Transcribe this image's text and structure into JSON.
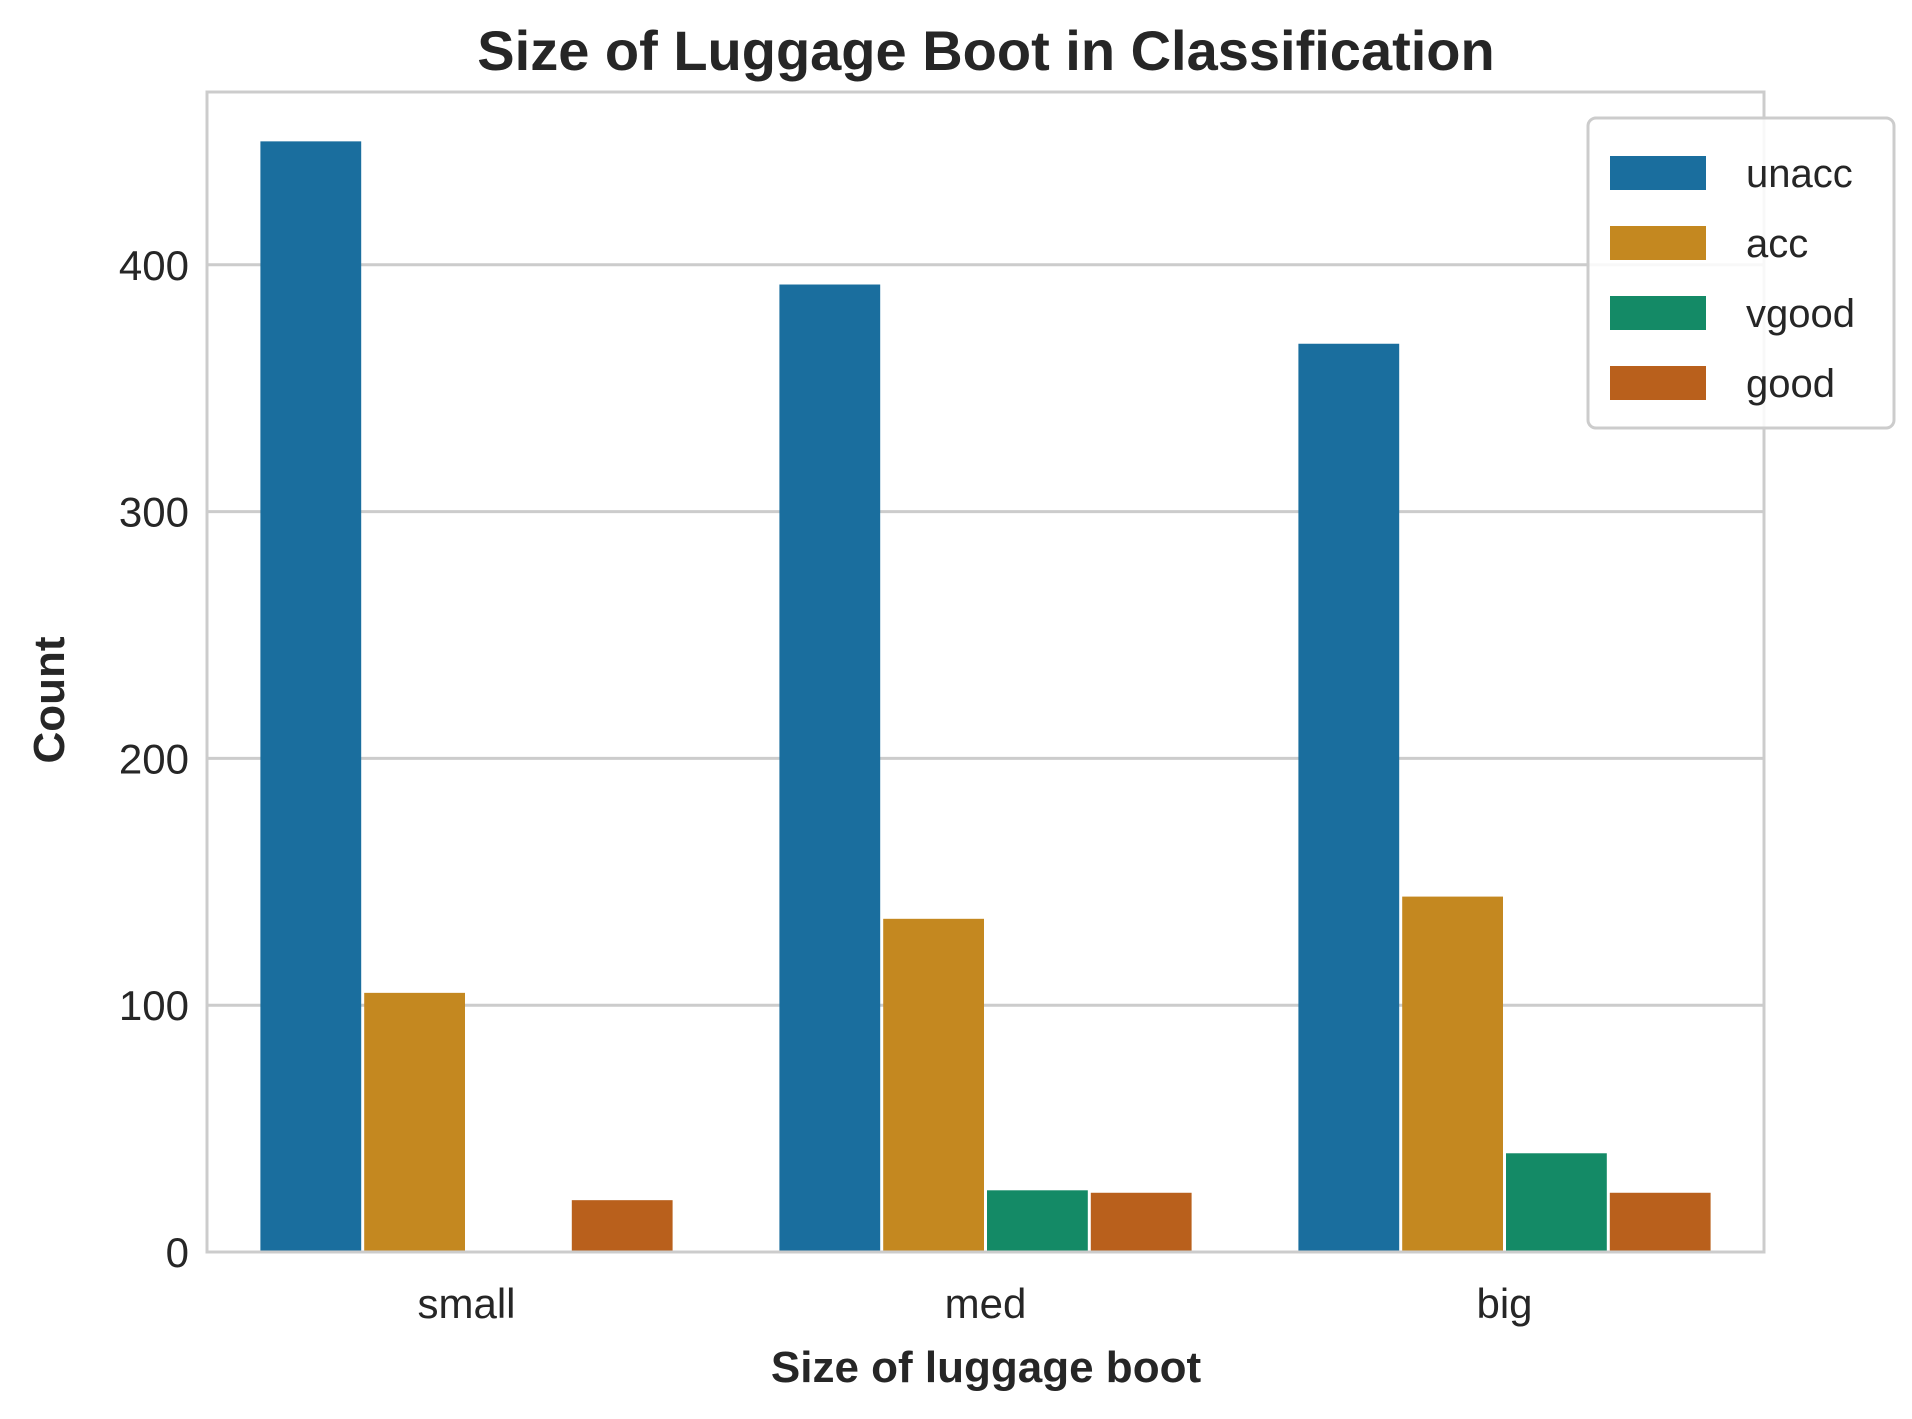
{
  "chart_data": {
    "type": "bar",
    "title": "Size of Luggage Boot in Classification",
    "xlabel": "Size of luggage boot",
    "ylabel": "Count",
    "categories": [
      "small",
      "med",
      "big"
    ],
    "ylim": [
      0,
      470
    ],
    "yticks": [
      0,
      100,
      200,
      300,
      400
    ],
    "grid": "horizontal",
    "legend_position": "top-right",
    "series": [
      {
        "name": "unacc",
        "color": "#1a6e9e",
        "values": [
          450,
          392,
          368
        ]
      },
      {
        "name": "acc",
        "color": "#c48820",
        "values": [
          105,
          135,
          144
        ]
      },
      {
        "name": "vgood",
        "color": "#148a66",
        "values": [
          0,
          25,
          40
        ]
      },
      {
        "name": "good",
        "color": "#b9601c",
        "values": [
          21,
          24,
          24
        ]
      }
    ]
  }
}
